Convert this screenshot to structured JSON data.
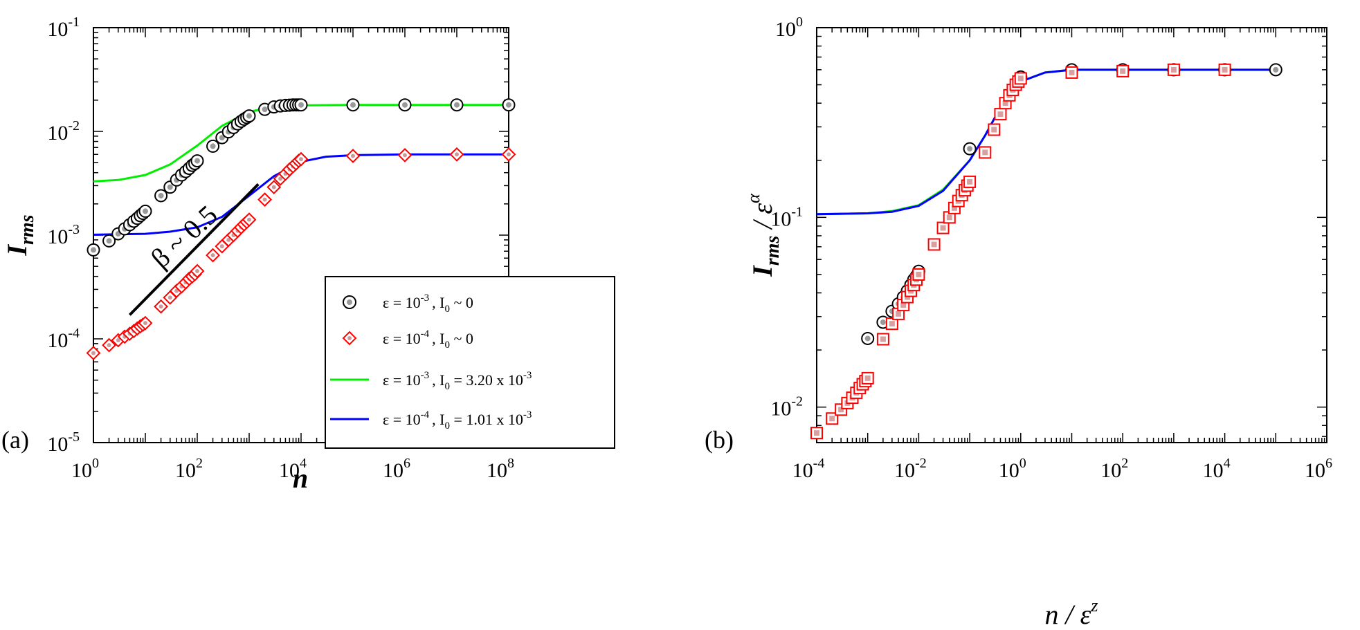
{
  "figure": {
    "panels": [
      {
        "tag": "(a)",
        "xlabel": "n",
        "ylabel_main": "I",
        "ylabel_sub": "rms",
        "annotation": "β ~ 0.5",
        "xticks": [
          {
            "base": "10",
            "exp": "0"
          },
          {
            "base": "10",
            "exp": "2"
          },
          {
            "base": "10",
            "exp": "4"
          },
          {
            "base": "10",
            "exp": "6"
          },
          {
            "base": "10",
            "exp": "8"
          }
        ],
        "yticks": [
          {
            "base": "10",
            "exp": "-5"
          },
          {
            "base": "10",
            "exp": "-4"
          },
          {
            "base": "10",
            "exp": "-3"
          },
          {
            "base": "10",
            "exp": "-2"
          },
          {
            "base": "10",
            "exp": "-1"
          }
        ],
        "legend": [
          {
            "lead": "ε = 10",
            "exp": "-3",
            "mid": ", I",
            "sub": "0",
            "tail": " ~ 0",
            "tailexp": ""
          },
          {
            "lead": "ε = 10",
            "exp": "-4",
            "mid": ", I",
            "sub": "0",
            "tail": " ~ 0",
            "tailexp": ""
          },
          {
            "lead": "ε = 10",
            "exp": "-3",
            "mid": ", I",
            "sub": "0",
            "tail": " = 3.20 x 10",
            "tailexp": "-3"
          },
          {
            "lead": "ε = 10",
            "exp": "-4",
            "mid": ", I",
            "sub": "0",
            "tail": " = 1.01 x 10",
            "tailexp": "-3"
          }
        ]
      },
      {
        "tag": "(b)",
        "xlabel_main": "n / ε",
        "xlabel_exp": "z",
        "ylabel_main": "I",
        "ylabel_sub": "rms",
        "ylabel_tail": " / ε",
        "ylabel_exp": "α",
        "xticks": [
          {
            "base": "10",
            "exp": "-4"
          },
          {
            "base": "10",
            "exp": "-2"
          },
          {
            "base": "10",
            "exp": "0"
          },
          {
            "base": "10",
            "exp": "2"
          },
          {
            "base": "10",
            "exp": "4"
          },
          {
            "base": "10",
            "exp": "6"
          }
        ],
        "yticks": [
          {
            "base": "10",
            "exp": "-2"
          },
          {
            "base": "10",
            "exp": "-1"
          },
          {
            "base": "10",
            "exp": "0"
          }
        ]
      }
    ]
  },
  "chart_data": [
    {
      "type": "scatter",
      "xscale": "log",
      "yscale": "log",
      "xlim": [
        1,
        100000000
      ],
      "ylim": [
        1e-05,
        0.1
      ],
      "legend_position": "center-right",
      "series": [
        {
          "name": "ε = 10^-3 , I0 ~ 0",
          "kind": "points",
          "marker": "circle",
          "color": "#000000",
          "x": [
            1,
            2,
            3,
            4,
            5,
            6,
            7,
            8,
            9,
            10,
            20,
            30,
            40,
            50,
            60,
            70,
            80,
            90,
            100,
            200,
            300,
            400,
            500,
            600,
            700,
            800,
            900,
            1000,
            2000,
            3000,
            4000,
            5000,
            6000,
            7000,
            8000,
            9000,
            10000,
            100000,
            1000000,
            10000000,
            100000000
          ],
          "y": [
            0.00072,
            0.00088,
            0.00103,
            0.00115,
            0.00126,
            0.00136,
            0.00145,
            0.00154,
            0.00162,
            0.0017,
            0.0024,
            0.0029,
            0.0034,
            0.0038,
            0.0041,
            0.0044,
            0.0047,
            0.0049,
            0.0052,
            0.0072,
            0.0087,
            0.0099,
            0.0109,
            0.0118,
            0.0125,
            0.0131,
            0.0136,
            0.0141,
            0.0163,
            0.0172,
            0.0176,
            0.0178,
            0.0179,
            0.018,
            0.018,
            0.018,
            0.018,
            0.018,
            0.018,
            0.018,
            0.018
          ]
        },
        {
          "name": "ε = 10^-4 , I0 ~ 0",
          "kind": "points",
          "marker": "diamond",
          "color": "#ff0000",
          "x": [
            1,
            2,
            3,
            4,
            5,
            6,
            7,
            8,
            9,
            10,
            20,
            30,
            40,
            50,
            60,
            70,
            80,
            90,
            100,
            200,
            300,
            400,
            500,
            600,
            700,
            800,
            900,
            1000,
            2000,
            3000,
            4000,
            5000,
            6000,
            7000,
            8000,
            9000,
            10000,
            100000,
            1000000,
            10000000,
            100000000
          ],
          "y": [
            7.3e-05,
            8.7e-05,
            9.7e-05,
            0.000105,
            0.000112,
            0.000119,
            0.000126,
            0.000132,
            0.000137,
            0.000142,
            0.000205,
            0.00025,
            0.00029,
            0.00032,
            0.00035,
            0.00038,
            0.0004,
            0.00042,
            0.00045,
            0.00064,
            0.00078,
            0.0009,
            0.001,
            0.0011,
            0.00119,
            0.00127,
            0.00134,
            0.00141,
            0.0022,
            0.0029,
            0.0035,
            0.0039,
            0.0043,
            0.0046,
            0.0049,
            0.0052,
            0.0054,
            0.0058,
            0.0059,
            0.006,
            0.006
          ]
        },
        {
          "name": "ε = 10^-3 , I0 = 3.20 x 10^-3",
          "kind": "line",
          "color": "#00ee00",
          "x": [
            1,
            3,
            10,
            30,
            100,
            300,
            1000,
            3000,
            10000,
            100000,
            1000000,
            10000000,
            100000000
          ],
          "y": [
            0.0033,
            0.0034,
            0.0038,
            0.0048,
            0.0073,
            0.0113,
            0.0155,
            0.0172,
            0.0178,
            0.018,
            0.018,
            0.018,
            0.018
          ]
        },
        {
          "name": "ε = 10^-4 , I0 = 1.01 x 10^-3",
          "kind": "line",
          "color": "#0000ff",
          "x": [
            1,
            3,
            10,
            30,
            100,
            300,
            1000,
            3000,
            10000,
            30000,
            100000,
            1000000,
            10000000,
            100000000
          ],
          "y": [
            0.00101,
            0.00102,
            0.00103,
            0.00108,
            0.00119,
            0.0015,
            0.0024,
            0.0037,
            0.0051,
            0.0057,
            0.0059,
            0.006,
            0.006,
            0.006
          ]
        },
        {
          "name": "β ~ 0.5",
          "kind": "reference-line",
          "color": "#000000",
          "x": [
            5,
            1500
          ],
          "y": [
            0.00017,
            0.0031
          ]
        }
      ]
    },
    {
      "type": "scatter",
      "xscale": "log",
      "yscale": "log",
      "xlim": [
        0.0001,
        1000000
      ],
      "ylim": [
        0.0065,
        1
      ],
      "series": [
        {
          "kind": "points",
          "marker": "circle",
          "color": "#000000",
          "x": [
            0.001,
            0.002,
            0.003,
            0.004,
            0.005,
            0.006,
            0.007,
            0.008,
            0.009,
            0.01,
            0.1,
            1,
            10,
            100,
            1000,
            10000,
            100000
          ],
          "y": [
            0.023,
            0.028,
            0.032,
            0.035,
            0.038,
            0.041,
            0.044,
            0.047,
            0.049,
            0.052,
            0.23,
            0.55,
            0.6,
            0.6,
            0.6,
            0.6,
            0.6
          ]
        },
        {
          "kind": "points",
          "marker": "square",
          "color": "#ff0000",
          "x": [
            0.0001,
            0.0002,
            0.0003,
            0.0004,
            0.0005,
            0.0006,
            0.0007,
            0.0008,
            0.0009,
            0.001,
            0.002,
            0.003,
            0.004,
            0.005,
            0.006,
            0.007,
            0.008,
            0.009,
            0.01,
            0.02,
            0.03,
            0.04,
            0.05,
            0.06,
            0.07,
            0.08,
            0.09,
            0.1,
            0.2,
            0.3,
            0.4,
            0.5,
            0.6,
            0.7,
            0.8,
            0.9,
            1,
            10,
            100,
            1000,
            10000
          ],
          "y": [
            0.0073,
            0.0087,
            0.0097,
            0.0105,
            0.0112,
            0.0119,
            0.0126,
            0.0132,
            0.0137,
            0.0142,
            0.0228,
            0.0275,
            0.031,
            0.0345,
            0.038,
            0.041,
            0.044,
            0.047,
            0.05,
            0.072,
            0.088,
            0.1,
            0.112,
            0.122,
            0.131,
            0.139,
            0.147,
            0.154,
            0.22,
            0.29,
            0.35,
            0.4,
            0.44,
            0.47,
            0.5,
            0.52,
            0.54,
            0.58,
            0.59,
            0.6,
            0.6
          ]
        },
        {
          "kind": "line",
          "color": "#00ee00",
          "x": [
            0.0001,
            0.001,
            0.003,
            0.01,
            0.03,
            0.1,
            0.2,
            0.3,
            0.5,
            1,
            3,
            10,
            100,
            1000,
            10000,
            100000
          ],
          "y": [
            0.104,
            0.105,
            0.108,
            0.116,
            0.14,
            0.2,
            0.27,
            0.33,
            0.42,
            0.52,
            0.58,
            0.6,
            0.6,
            0.6,
            0.6,
            0.6
          ]
        },
        {
          "kind": "line",
          "color": "#0000ff",
          "x": [
            0.0001,
            0.001,
            0.003,
            0.01,
            0.03,
            0.1,
            0.2,
            0.3,
            0.5,
            1,
            3,
            10,
            100,
            1000,
            10000,
            100000
          ],
          "y": [
            0.104,
            0.105,
            0.107,
            0.115,
            0.138,
            0.2,
            0.27,
            0.33,
            0.42,
            0.52,
            0.58,
            0.6,
            0.6,
            0.6,
            0.6,
            0.6
          ]
        }
      ]
    }
  ]
}
